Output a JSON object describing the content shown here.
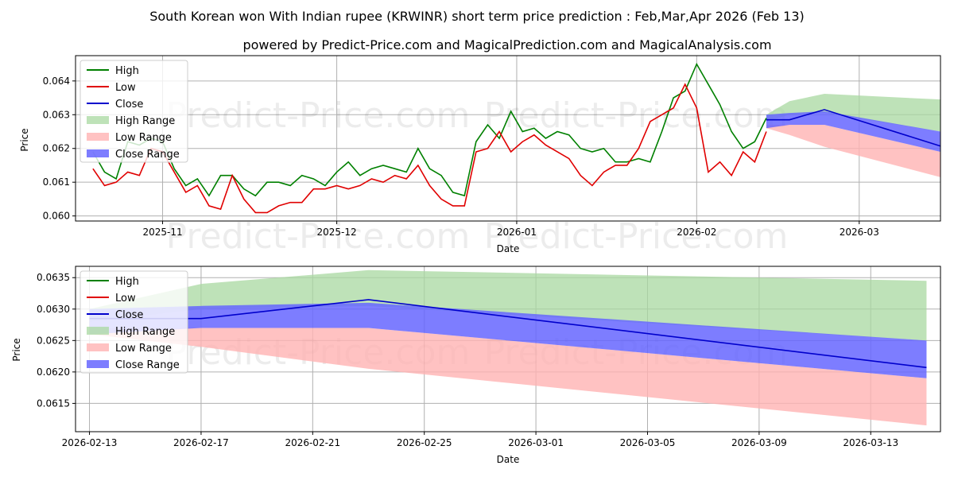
{
  "title": "South Korean won With Indian rupee (KRWINR) short term price prediction : Feb,Mar,Apr 2026 (Feb 13)",
  "subtitle": "powered by Predict-Price.com and MagicalPrediction.com and MagicalAnalysis.com",
  "watermark": "Predict-Price.com",
  "colors": {
    "high": "#008000",
    "low": "#e00000",
    "close": "#0000cc",
    "high_range": "#a8d8a0",
    "low_range": "#ffb3b3",
    "close_range": "#6666ff"
  },
  "chart_data": [
    {
      "type": "line",
      "title": "",
      "xlabel": "Date",
      "ylabel": "Price",
      "x_range": [
        "2025-10-17",
        "2026-03-15"
      ],
      "ylim": [
        0.05985,
        0.06475
      ],
      "x_ticks": [
        "2025-11-01",
        "2025-12-01",
        "2026-01-01",
        "2026-02-01",
        "2026-03-01"
      ],
      "x_tick_labels": [
        "2025-11",
        "2025-12",
        "2026-01",
        "2026-02",
        "2026-03"
      ],
      "y_ticks": [
        0.06,
        0.061,
        0.062,
        0.063,
        0.064
      ],
      "y_tick_labels": [
        "0.060",
        "0.061",
        "0.062",
        "0.063",
        "0.064"
      ],
      "grid": true,
      "legend_position": "top-left",
      "legend": [
        "High",
        "Low",
        "Close",
        "High Range",
        "Low Range",
        "Close Range"
      ],
      "series": [
        {
          "name": "High",
          "x": [
            "2025-10-20",
            "2025-10-22",
            "2025-10-24",
            "2025-10-26",
            "2025-10-28",
            "2025-10-30",
            "2025-11-01",
            "2025-11-03",
            "2025-11-05",
            "2025-11-07",
            "2025-11-09",
            "2025-11-11",
            "2025-11-13",
            "2025-11-15",
            "2025-11-17",
            "2025-11-19",
            "2025-11-21",
            "2025-11-23",
            "2025-11-25",
            "2025-11-27",
            "2025-11-29",
            "2025-12-01",
            "2025-12-03",
            "2025-12-05",
            "2025-12-07",
            "2025-12-09",
            "2025-12-11",
            "2025-12-13",
            "2025-12-15",
            "2025-12-17",
            "2025-12-19",
            "2025-12-21",
            "2025-12-23",
            "2025-12-25",
            "2025-12-27",
            "2025-12-29",
            "2025-12-31",
            "2026-01-02",
            "2026-01-04",
            "2026-01-06",
            "2026-01-08",
            "2026-01-10",
            "2026-01-12",
            "2026-01-14",
            "2026-01-16",
            "2026-01-18",
            "2026-01-20",
            "2026-01-22",
            "2026-01-24",
            "2026-01-26",
            "2026-01-28",
            "2026-01-30",
            "2026-02-01",
            "2026-02-03",
            "2026-02-05",
            "2026-02-07",
            "2026-02-09",
            "2026-02-11",
            "2026-02-13"
          ],
          "values": [
            0.0619,
            0.0613,
            0.0611,
            0.0622,
            0.0621,
            0.0623,
            0.0622,
            0.0614,
            0.0609,
            0.0611,
            0.0606,
            0.0612,
            0.0612,
            0.0608,
            0.0606,
            0.061,
            0.061,
            0.0609,
            0.0612,
            0.0611,
            0.0609,
            0.0613,
            0.0616,
            0.0612,
            0.0614,
            0.0615,
            0.0614,
            0.0613,
            0.062,
            0.0614,
            0.0612,
            0.0607,
            0.0606,
            0.0622,
            0.0627,
            0.0623,
            0.0631,
            0.0625,
            0.0626,
            0.0623,
            0.0625,
            0.0624,
            0.062,
            0.0619,
            0.062,
            0.0616,
            0.0616,
            0.0617,
            0.0616,
            0.0625,
            0.0635,
            0.0637,
            0.0645,
            0.0639,
            0.0633,
            0.0625,
            0.062,
            0.0622,
            0.0629
          ]
        },
        {
          "name": "Low",
          "x": [
            "2025-10-20",
            "2025-10-22",
            "2025-10-24",
            "2025-10-26",
            "2025-10-28",
            "2025-10-30",
            "2025-11-01",
            "2025-11-03",
            "2025-11-05",
            "2025-11-07",
            "2025-11-09",
            "2025-11-11",
            "2025-11-13",
            "2025-11-15",
            "2025-11-17",
            "2025-11-19",
            "2025-11-21",
            "2025-11-23",
            "2025-11-25",
            "2025-11-27",
            "2025-11-29",
            "2025-12-01",
            "2025-12-03",
            "2025-12-05",
            "2025-12-07",
            "2025-12-09",
            "2025-12-11",
            "2025-12-13",
            "2025-12-15",
            "2025-12-17",
            "2025-12-19",
            "2025-12-21",
            "2025-12-23",
            "2025-12-25",
            "2025-12-27",
            "2025-12-29",
            "2025-12-31",
            "2026-01-02",
            "2026-01-04",
            "2026-01-06",
            "2026-01-08",
            "2026-01-10",
            "2026-01-12",
            "2026-01-14",
            "2026-01-16",
            "2026-01-18",
            "2026-01-20",
            "2026-01-22",
            "2026-01-24",
            "2026-01-26",
            "2026-01-28",
            "2026-01-30",
            "2026-02-01",
            "2026-02-03",
            "2026-02-05",
            "2026-02-07",
            "2026-02-09",
            "2026-02-11",
            "2026-02-13"
          ],
          "values": [
            0.0614,
            0.0609,
            0.061,
            0.0613,
            0.0612,
            0.062,
            0.0619,
            0.0613,
            0.0607,
            0.0609,
            0.0603,
            0.0602,
            0.0612,
            0.0605,
            0.0601,
            0.0601,
            0.0603,
            0.0604,
            0.0604,
            0.0608,
            0.0608,
            0.0609,
            0.0608,
            0.0609,
            0.0611,
            0.061,
            0.0612,
            0.0611,
            0.0615,
            0.0609,
            0.0605,
            0.0603,
            0.0603,
            0.0619,
            0.062,
            0.0625,
            0.0619,
            0.0622,
            0.0624,
            0.0621,
            0.0619,
            0.0617,
            0.0612,
            0.0609,
            0.0613,
            0.0615,
            0.0615,
            0.062,
            0.0628,
            0.063,
            0.0632,
            0.0639,
            0.0632,
            0.0613,
            0.0616,
            0.0612,
            0.0619,
            0.0616,
            0.0625
          ]
        },
        {
          "name": "Close",
          "x": [
            "2026-02-13",
            "2026-02-17",
            "2026-02-23",
            "2026-03-15"
          ],
          "values": [
            0.06285,
            0.06285,
            0.06315,
            0.06207
          ]
        },
        {
          "name": "High Range",
          "x": [
            "2026-02-13",
            "2026-02-17",
            "2026-02-23",
            "2026-03-15"
          ],
          "upper": [
            0.063,
            0.0634,
            0.06362,
            0.06345
          ],
          "lower": [
            0.0628,
            0.063,
            0.06305,
            0.0625
          ]
        },
        {
          "name": "Low Range",
          "x": [
            "2026-02-13",
            "2026-02-17",
            "2026-02-23",
            "2026-03-15"
          ],
          "upper": [
            0.0627,
            0.0627,
            0.0627,
            0.0619
          ],
          "lower": [
            0.0626,
            0.0624,
            0.06205,
            0.06115
          ]
        },
        {
          "name": "Close Range",
          "x": [
            "2026-02-13",
            "2026-02-17",
            "2026-02-23",
            "2026-03-15"
          ],
          "upper": [
            0.063,
            0.06305,
            0.0631,
            0.0625
          ],
          "lower": [
            0.0626,
            0.0627,
            0.0627,
            0.0619
          ]
        }
      ]
    },
    {
      "type": "line",
      "title": "",
      "xlabel": "Date",
      "ylabel": "Price",
      "x_range": [
        "2026-02-13 -0.5",
        "2026-03-15 +0.5"
      ],
      "x_start": "2026-02-13",
      "x_domain_days": [
        -0.5,
        30.5
      ],
      "ylim": [
        0.06105,
        0.06368
      ],
      "x_ticks": [
        "2026-02-13",
        "2026-02-17",
        "2026-02-21",
        "2026-02-25",
        "2026-03-01",
        "2026-03-05",
        "2026-03-09",
        "2026-03-13"
      ],
      "x_tick_labels": [
        "2026-02-13",
        "2026-02-17",
        "2026-02-21",
        "2026-02-25",
        "2026-03-01",
        "2026-03-05",
        "2026-03-09",
        "2026-03-13"
      ],
      "y_ticks": [
        0.0615,
        0.062,
        0.0625,
        0.063,
        0.0635
      ],
      "y_tick_labels": [
        "0.0615",
        "0.0620",
        "0.0625",
        "0.0630",
        "0.0635"
      ],
      "grid": true,
      "legend_position": "top-left",
      "legend": [
        "High",
        "Low",
        "Close",
        "High Range",
        "Low Range",
        "Close Range"
      ],
      "series": [
        {
          "name": "Close",
          "x": [
            "2026-02-13",
            "2026-02-17",
            "2026-02-23",
            "2026-03-15"
          ],
          "values": [
            0.06285,
            0.06285,
            0.06315,
            0.06207
          ]
        },
        {
          "name": "High Range",
          "x": [
            "2026-02-13",
            "2026-02-17",
            "2026-02-23",
            "2026-03-15"
          ],
          "upper": [
            0.063,
            0.0634,
            0.06362,
            0.06345
          ],
          "lower": [
            0.0628,
            0.063,
            0.06305,
            0.0625
          ]
        },
        {
          "name": "Low Range",
          "x": [
            "2026-02-13",
            "2026-02-17",
            "2026-02-23",
            "2026-03-15"
          ],
          "upper": [
            0.0627,
            0.0627,
            0.0627,
            0.0619
          ],
          "lower": [
            0.0626,
            0.0624,
            0.06205,
            0.06115
          ]
        },
        {
          "name": "Close Range",
          "x": [
            "2026-02-13",
            "2026-02-17",
            "2026-02-23",
            "2026-03-15"
          ],
          "upper": [
            0.063,
            0.06305,
            0.0631,
            0.0625
          ],
          "lower": [
            0.0626,
            0.0627,
            0.0627,
            0.0619
          ]
        }
      ]
    }
  ]
}
